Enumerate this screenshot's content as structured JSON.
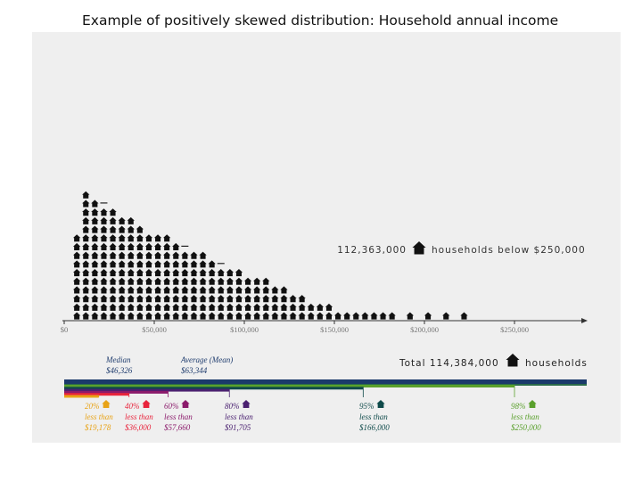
{
  "title": "Example of positively skewed distribution: Household annual income",
  "chart_data": {
    "type": "bar",
    "x_tick_labels": [
      "$0",
      "$50,000",
      "$100,000",
      "$150,000",
      "$200,000",
      "$250,000"
    ],
    "xlim": [
      0,
      250000
    ],
    "bin_width": 5000,
    "bin_starts": [
      5000,
      10000,
      15000,
      20000,
      25000,
      30000,
      35000,
      40000,
      45000,
      50000,
      55000,
      60000,
      65000,
      70000,
      75000,
      80000,
      85000,
      90000,
      95000,
      100000,
      105000,
      110000,
      115000,
      120000,
      125000,
      130000,
      135000,
      140000,
      145000,
      150000,
      155000,
      160000,
      165000,
      170000,
      175000,
      180000,
      185000,
      190000,
      195000,
      200000,
      205000,
      210000,
      215000,
      220000,
      225000,
      230000,
      235000,
      240000,
      245000
    ],
    "icon_counts": [
      10,
      15,
      14,
      13,
      13,
      12,
      12,
      11,
      10,
      10,
      10,
      9,
      8,
      8,
      8,
      7,
      6,
      6,
      6,
      5,
      5,
      5,
      4,
      4,
      3,
      3,
      2,
      2,
      2,
      1,
      1,
      1,
      1,
      1,
      1,
      1,
      0,
      1,
      0,
      1,
      0,
      1,
      0,
      1,
      0,
      0,
      0,
      0,
      0
    ],
    "bin_start_marker_bins": [
      20000,
      65000,
      85000
    ],
    "callout": {
      "value": "112,363,000",
      "text": "households below $250,000"
    },
    "total": {
      "prefix": "Total",
      "value": "114,384,000",
      "text": "households"
    },
    "averages": [
      {
        "label": "Median",
        "value": "$46,326"
      },
      {
        "label": "Average (Mean)",
        "value": "$63,344"
      }
    ],
    "percentiles": [
      {
        "pct": "20%",
        "text": "less than",
        "value": "$19,178",
        "amount": 19178,
        "color": "#e8a317"
      },
      {
        "pct": "40%",
        "text": "less than",
        "value": "$36,000",
        "amount": 36000,
        "color": "#e8243c"
      },
      {
        "pct": "60%",
        "text": "less than",
        "value": "$57,660",
        "amount": 57660,
        "color": "#8b1a6b"
      },
      {
        "pct": "80%",
        "text": "less than",
        "value": "$91,705",
        "amount": 91705,
        "color": "#4a2070"
      },
      {
        "pct": "95%",
        "text": "less than",
        "value": "$166,000",
        "amount": 166000,
        "color": "#0f4a4a"
      },
      {
        "pct": "98%",
        "text": "less than",
        "value": "$250,000",
        "amount": 250000,
        "color": "#5aa02c"
      }
    ],
    "colors": {
      "icons": "#111111",
      "median": "#1f3c6e",
      "mean": "#1f3c6e",
      "total_bar": "#1b3a6b",
      "axis": "#333333"
    }
  }
}
